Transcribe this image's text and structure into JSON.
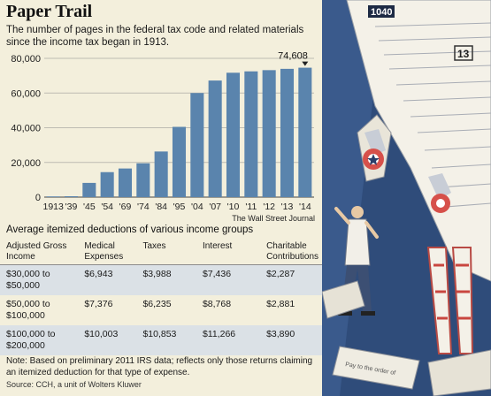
{
  "header": {
    "title": "Paper Trail",
    "subtitle": "The number of pages in the federal tax code and related materials since the income tax began in 1913."
  },
  "colors": {
    "bar": "#5a84ad",
    "panel": "#f3efdc",
    "shade_row": "#dbe1e6"
  },
  "chart_data": {
    "type": "bar",
    "categories": [
      "1913",
      "'39",
      "'45",
      "'54",
      "'69",
      "'74",
      "'84",
      "'95",
      "'04",
      "'07",
      "'10",
      "'11",
      "'12",
      "'13",
      "'14"
    ],
    "values": [
      400,
      500,
      8200,
      14400,
      16500,
      19500,
      26300,
      40500,
      60000,
      67200,
      71700,
      72500,
      73200,
      73950,
      74608
    ],
    "title": "Paper Trail",
    "xlabel": "",
    "ylabel": "",
    "ylim": [
      0,
      80000
    ],
    "yticks": [
      0,
      20000,
      40000,
      60000,
      80000
    ],
    "ytick_labels": [
      "0",
      "20,000",
      "40,000",
      "60,000",
      "80,000"
    ],
    "grid": true,
    "annotation": {
      "category": "'14",
      "label": "74,608"
    }
  },
  "credit": "The Wall Street Journal",
  "table": {
    "subhead": "Average itemized deductions of various income groups",
    "headers": [
      "Adjusted Gross Income",
      "Medical Expenses",
      "Taxes",
      "Interest",
      "Charitable Contributions"
    ],
    "rows": [
      [
        "$30,000 to $50,000",
        "$6,943",
        "$3,988",
        "$7,436",
        "$2,287"
      ],
      [
        "$50,000 to $100,000",
        "$7,376",
        "$6,235",
        "$8,768",
        "$2,881"
      ],
      [
        "$100,000 to $200,000",
        "$10,003",
        "$10,853",
        "$11,266",
        "$3,890"
      ]
    ]
  },
  "note": "Note: Based on preliminary 2011 IRS data; reflects only those returns claiming an itemized deduction for that type of expense.",
  "source": "Source: CCH, a unit of Wolters Kluwer",
  "illustration": {
    "form_label": "1040",
    "form_box": "13",
    "scrap_text": "Pay to the order of"
  }
}
